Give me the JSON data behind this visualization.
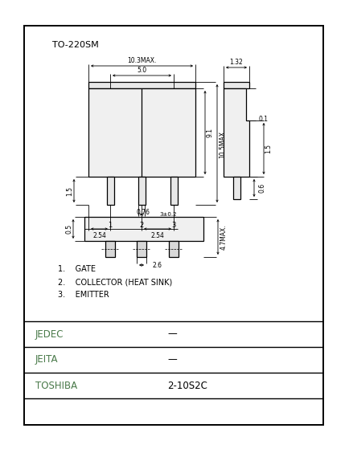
{
  "title": "TO-220SM",
  "bg_color": "#ffffff",
  "line_color": "#000000",
  "labels": {
    "jedec": "JEDEC",
    "jeita": "JEITA",
    "toshiba": "TOSHIBA",
    "jedec_val": "—",
    "jeita_val": "—",
    "toshiba_val": "2-10S2C"
  },
  "pin_labels": [
    "1.    GATE",
    "2.    COLLECTOR (HEAT SINK)",
    "3.    EMITTER"
  ],
  "label_color": "#4a7a4a",
  "dims": {
    "10.3MAX": "10.3MAX.",
    "5.0": "5.0",
    "1.32": "1.32",
    "9.1": "9.1",
    "10.5MAX": "10.5MAX.",
    "3pm0.2": "3±0.2",
    "1.5": "1.5",
    "0.76": "0.76",
    "2.54a": "2.54",
    "2.54b": "2.54",
    "0.5": "0.5",
    "2.6": "2.6",
    "4.7MAX": "4.7MAX.",
    "0.1": "0.1",
    "1.5b": "1.5",
    "0.6": "0.6"
  }
}
